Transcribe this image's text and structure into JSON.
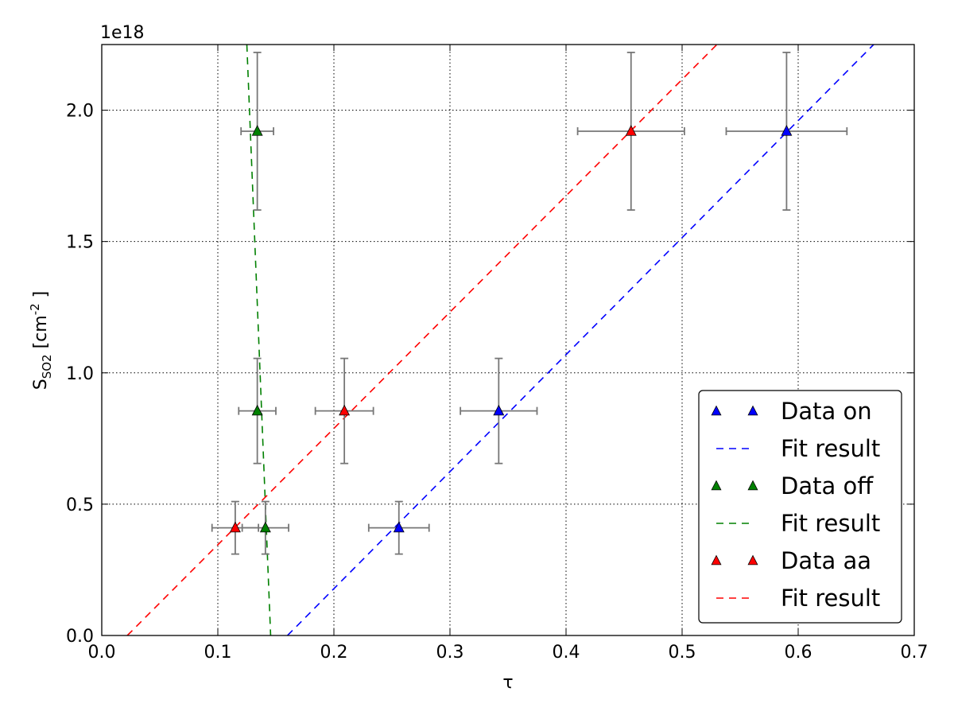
{
  "chart_data": {
    "type": "scatter",
    "title": "",
    "offset_label": "1e18",
    "xlabel": "τ",
    "ylabel": {
      "prefix": "S",
      "subscript": "SO2",
      "unit_open": " [cm",
      "superscript": "-2",
      "unit_close": " ]"
    },
    "xlim": [
      0.0,
      0.7
    ],
    "ylim": [
      0.0,
      2.25
    ],
    "y_unit_scale": "1e18",
    "x_ticks": [
      0.0,
      0.1,
      0.2,
      0.3,
      0.4,
      0.5,
      0.6,
      0.7
    ],
    "x_tick_labels": [
      "0.0",
      "0.1",
      "0.2",
      "0.3",
      "0.4",
      "0.5",
      "0.6",
      "0.7"
    ],
    "y_ticks": [
      0.0,
      0.5,
      1.0,
      1.5,
      2.0
    ],
    "y_tick_labels": [
      "0.0",
      "0.5",
      "1.0",
      "1.5",
      "2.0"
    ],
    "grid": true,
    "legend_position": "lower-right",
    "series": [
      {
        "name": "Data on",
        "kind": "points",
        "color": "#0000ff",
        "points": [
          {
            "x": 0.256,
            "y": 0.41,
            "xerr": 0.026,
            "yerr": 0.1
          },
          {
            "x": 0.342,
            "y": 0.855,
            "xerr": 0.033,
            "yerr": 0.2
          },
          {
            "x": 0.59,
            "y": 1.92,
            "xerr": 0.052,
            "yerr": 0.3
          }
        ]
      },
      {
        "name": "Fit result",
        "kind": "line",
        "color": "#0000ff",
        "x": [
          0.16,
          0.665
        ],
        "y": [
          0.0,
          2.25
        ]
      },
      {
        "name": "Data off",
        "kind": "points",
        "color": "#008000",
        "points": [
          {
            "x": 0.141,
            "y": 0.41,
            "xerr": 0.02,
            "yerr": 0.1
          },
          {
            "x": 0.134,
            "y": 0.855,
            "xerr": 0.016,
            "yerr": 0.2
          },
          {
            "x": 0.134,
            "y": 1.92,
            "xerr": 0.014,
            "yerr": 0.3
          }
        ]
      },
      {
        "name": "Fit result",
        "kind": "line",
        "color": "#008000",
        "x": [
          0.125,
          0.1455
        ],
        "y": [
          2.25,
          0.0
        ]
      },
      {
        "name": "Data aa",
        "kind": "points",
        "color": "#ff0000",
        "points": [
          {
            "x": 0.115,
            "y": 0.41,
            "xerr": 0.02,
            "yerr": 0.1
          },
          {
            "x": 0.209,
            "y": 0.855,
            "xerr": 0.025,
            "yerr": 0.2
          },
          {
            "x": 0.456,
            "y": 1.92,
            "xerr": 0.046,
            "yerr": 0.3
          }
        ]
      },
      {
        "name": "Fit result",
        "kind": "line",
        "color": "#ff0000",
        "x": [
          0.022,
          0.53
        ],
        "y": [
          0.0,
          2.25
        ]
      }
    ],
    "errorbar_color": "#777777"
  }
}
